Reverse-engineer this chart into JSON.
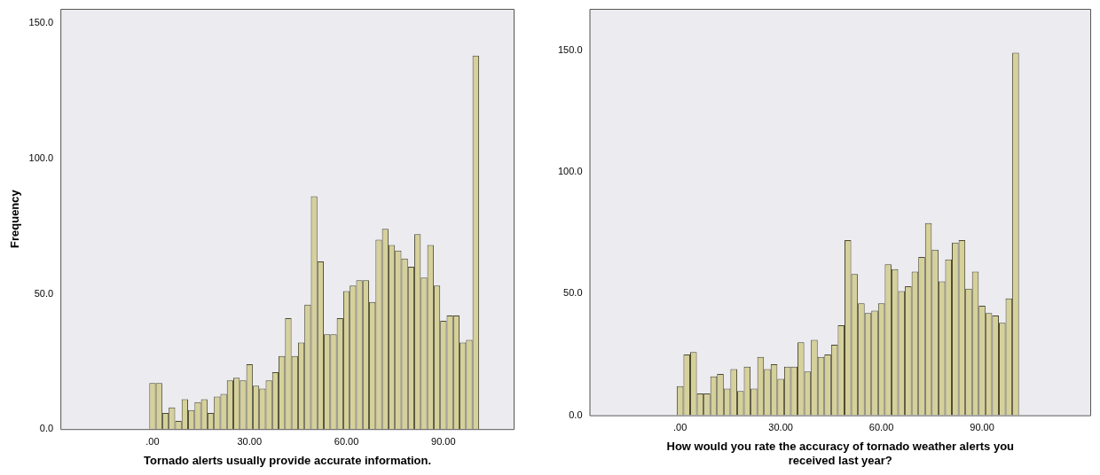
{
  "chart_data": [
    {
      "type": "histogram",
      "xlabel": "Tornado alerts usually provide accurate information.",
      "ylabel": "Frequency",
      "color": "#d6d09a",
      "bins": [
        -1,
        1,
        3,
        5,
        7,
        9,
        11,
        13,
        15,
        17,
        19,
        21,
        23,
        25,
        27,
        29,
        31,
        33,
        35,
        37,
        39,
        41,
        43,
        45,
        47,
        49,
        51,
        53,
        55,
        57,
        59,
        61,
        63,
        65,
        67,
        69,
        71,
        73,
        75,
        77,
        79,
        81,
        83,
        85,
        87,
        89,
        91,
        93,
        95,
        97,
        99,
        101
      ],
      "values": [
        17,
        17,
        6,
        8,
        3,
        11,
        7,
        10,
        11,
        6,
        12,
        13,
        18,
        19,
        18,
        24,
        16,
        15,
        18,
        21,
        27,
        41,
        27,
        32,
        46,
        86,
        62,
        35,
        35,
        41,
        51,
        53,
        55,
        55,
        47,
        70,
        74,
        68,
        66,
        63,
        60,
        72,
        56,
        68,
        53,
        40,
        42,
        42,
        32,
        33,
        138
      ],
      "xlim": [
        -28.5,
        112
      ],
      "xticks": [
        {
          "value": 0,
          "label": ".00"
        },
        {
          "value": 30,
          "label": "30.00"
        },
        {
          "value": 60,
          "label": "60.00"
        },
        {
          "value": 90,
          "label": "90.00"
        }
      ],
      "ylim": [
        0,
        155.3
      ],
      "yticks": [
        {
          "value": 0,
          "label": "0.0"
        },
        {
          "value": 50,
          "label": "50.0"
        },
        {
          "value": 100,
          "label": "100.0"
        },
        {
          "value": 150,
          "label": "150.0"
        }
      ]
    },
    {
      "type": "histogram",
      "xlabel": "How would you rate the accuracy of tornado weather alerts you received last year?",
      "color": "#d6d09a",
      "bins": [
        -1,
        1,
        3,
        5,
        7,
        9,
        11,
        13,
        15,
        17,
        19,
        21,
        23,
        25,
        27,
        29,
        31,
        33,
        35,
        37,
        39,
        41,
        43,
        45,
        47,
        49,
        51,
        53,
        55,
        57,
        59,
        61,
        63,
        65,
        67,
        69,
        71,
        73,
        75,
        77,
        79,
        81,
        83,
        85,
        87,
        89,
        91,
        93,
        95,
        97,
        99,
        101
      ],
      "values": [
        12,
        25,
        26,
        9,
        9,
        16,
        17,
        11,
        19,
        10,
        20,
        11,
        24,
        19,
        21,
        15,
        20,
        20,
        30,
        18,
        31,
        24,
        25,
        29,
        37,
        72,
        58,
        46,
        42,
        43,
        46,
        62,
        60,
        51,
        53,
        59,
        65,
        79,
        68,
        55,
        64,
        71,
        72,
        52,
        59,
        45,
        42,
        41,
        38,
        48,
        149
      ],
      "xlim": [
        -27,
        122.5
      ],
      "xticks": [
        {
          "value": 0,
          "label": ".00"
        },
        {
          "value": 30,
          "label": "30.00"
        },
        {
          "value": 60,
          "label": "60.00"
        },
        {
          "value": 90,
          "label": "90.00"
        }
      ],
      "ylim": [
        0,
        167
      ],
      "yticks": [
        {
          "value": 0,
          "label": "0.0"
        },
        {
          "value": 50,
          "label": "50.0"
        },
        {
          "value": 100,
          "label": "100.0"
        },
        {
          "value": 150,
          "label": "150.0"
        }
      ]
    }
  ]
}
